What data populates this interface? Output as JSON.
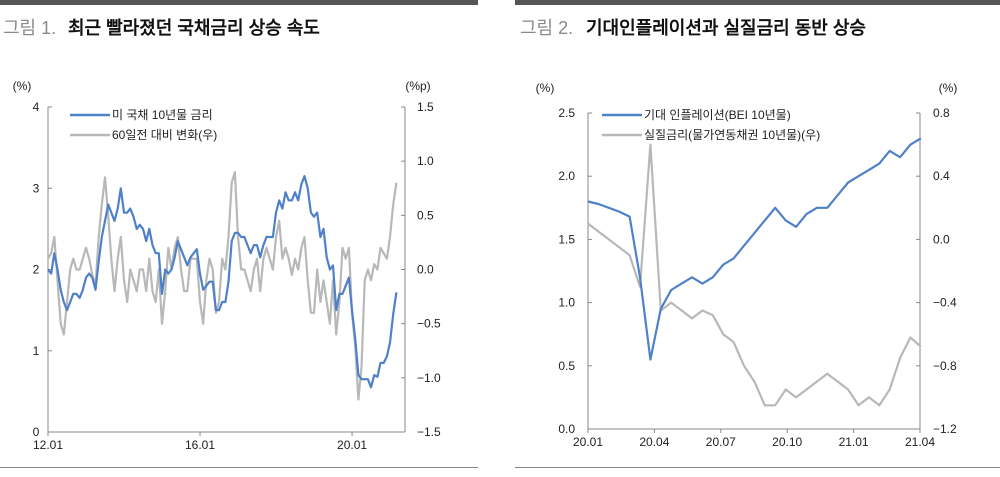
{
  "chart_data": [
    {
      "type": "line",
      "figure_label": "그림 1.",
      "title": "최근 빨라졌던 국채금리 상승 속도",
      "left_unit": "(%)",
      "right_unit": "(%p)",
      "left_ticks": [
        "4",
        "3",
        "2",
        "1",
        "0"
      ],
      "right_ticks": [
        "1.5",
        "1.0",
        "0.5",
        "0.0",
        "−0.5",
        "−1.0",
        "−1.5"
      ],
      "x_ticks": [
        "12.01",
        "16.01",
        "20.01"
      ],
      "ylim_left": [
        0,
        4
      ],
      "ylim_right": [
        -1.5,
        1.5
      ],
      "x_start": "2012-01",
      "x_step": "month",
      "legend_position": "top-left",
      "series": [
        {
          "name": "미 국채 10년물 금리",
          "axis": "left",
          "color": "#4f81c8",
          "values": [
            2.0,
            1.95,
            2.2,
            2.0,
            1.75,
            1.6,
            1.5,
            1.6,
            1.7,
            1.7,
            1.65,
            1.75,
            1.9,
            1.95,
            1.9,
            1.75,
            2.1,
            2.4,
            2.6,
            2.8,
            2.7,
            2.6,
            2.75,
            3.0,
            2.7,
            2.7,
            2.75,
            2.65,
            2.5,
            2.55,
            2.5,
            2.35,
            2.5,
            2.3,
            2.2,
            2.2,
            1.7,
            2.0,
            1.95,
            2.0,
            2.15,
            2.35,
            2.25,
            2.15,
            2.05,
            2.15,
            2.2,
            2.25,
            1.95,
            1.75,
            1.8,
            1.85,
            1.85,
            1.5,
            1.5,
            1.6,
            1.6,
            1.85,
            2.35,
            2.45,
            2.45,
            2.4,
            2.4,
            2.3,
            2.2,
            2.3,
            2.3,
            2.15,
            2.3,
            2.4,
            2.4,
            2.4,
            2.7,
            2.85,
            2.75,
            2.95,
            2.85,
            2.85,
            2.95,
            2.85,
            3.05,
            3.15,
            3.0,
            2.7,
            2.65,
            2.7,
            2.4,
            2.5,
            2.15,
            2.0,
            2.05,
            1.5,
            1.7,
            1.7,
            1.8,
            1.9,
            1.5,
            1.15,
            0.7,
            0.65,
            0.65,
            0.65,
            0.55,
            0.7,
            0.68,
            0.85,
            0.85,
            0.93,
            1.1,
            1.45,
            1.72
          ]
        },
        {
          "name": "60일전 대비 변화(우)",
          "axis": "right",
          "color": "#b8b8b8",
          "values": [
            0.1,
            0.15,
            0.3,
            -0.1,
            -0.5,
            -0.6,
            -0.3,
            0.0,
            0.1,
            0.0,
            0.0,
            0.1,
            0.2,
            0.1,
            -0.05,
            -0.15,
            0.3,
            0.6,
            0.85,
            0.5,
            0.1,
            -0.2,
            0.1,
            0.3,
            -0.1,
            -0.3,
            0.0,
            -0.1,
            -0.2,
            0.0,
            0.0,
            -0.2,
            0.1,
            -0.2,
            -0.3,
            0.0,
            -0.5,
            -0.2,
            0.2,
            0.0,
            0.2,
            0.3,
            0.0,
            -0.2,
            -0.2,
            0.1,
            0.1,
            0.1,
            -0.3,
            -0.5,
            -0.1,
            0.1,
            0.0,
            -0.4,
            -0.3,
            0.1,
            0.0,
            0.3,
            0.8,
            0.9,
            0.3,
            0.0,
            0.0,
            -0.1,
            -0.2,
            0.0,
            0.1,
            -0.2,
            0.1,
            0.2,
            0.1,
            0.0,
            0.3,
            0.45,
            0.1,
            0.2,
            0.1,
            -0.05,
            0.1,
            0.0,
            0.2,
            0.3,
            -0.1,
            -0.4,
            -0.4,
            0.0,
            -0.3,
            -0.1,
            -0.3,
            -0.5,
            -0.1,
            -0.6,
            -0.3,
            0.2,
            0.1,
            0.2,
            -0.4,
            -0.7,
            -1.2,
            -0.9,
            -0.1,
            0.0,
            -0.1,
            0.05,
            0.0,
            0.2,
            0.15,
            0.1,
            0.3,
            0.6,
            0.8
          ]
        }
      ]
    },
    {
      "type": "line",
      "figure_label": "그림 2.",
      "title": "기대인플레이션과 실질금리 동반 상승",
      "left_unit": "(%)",
      "right_unit": "(%)",
      "left_ticks": [
        "2.5",
        "2.0",
        "1.5",
        "1.0",
        "0.5",
        "0.0"
      ],
      "right_ticks": [
        "0.8",
        "0.4",
        "0.0",
        "−0.4",
        "−0.8",
        "−1.2"
      ],
      "x_ticks": [
        "20.01",
        "20.04",
        "20.07",
        "20.10",
        "21.01",
        "21.04"
      ],
      "ylim_left": [
        0,
        2.5
      ],
      "ylim_right": [
        -1.2,
        0.8
      ],
      "x_start": "2020-01",
      "x_step": "half-month",
      "legend_position": "top-left",
      "series": [
        {
          "name": "기대 인플레이션(BEI 10년물)",
          "axis": "left",
          "color": "#4f81c8",
          "values": [
            1.8,
            1.78,
            1.75,
            1.72,
            1.68,
            1.2,
            0.55,
            0.95,
            1.1,
            1.15,
            1.2,
            1.15,
            1.2,
            1.3,
            1.35,
            1.45,
            1.55,
            1.65,
            1.75,
            1.65,
            1.6,
            1.7,
            1.75,
            1.75,
            1.85,
            1.95,
            2.0,
            2.05,
            2.1,
            2.2,
            2.15,
            2.25,
            2.3
          ]
        },
        {
          "name": "실질금리(물가연동채권 10년물)(우)",
          "axis": "right",
          "color": "#b8b8b8",
          "values": [
            0.1,
            0.05,
            0.0,
            -0.05,
            -0.1,
            -0.3,
            0.6,
            -0.45,
            -0.4,
            -0.45,
            -0.5,
            -0.45,
            -0.48,
            -0.6,
            -0.65,
            -0.8,
            -0.9,
            -1.05,
            -1.05,
            -0.95,
            -1.0,
            -0.95,
            -0.9,
            -0.85,
            -0.9,
            -0.95,
            -1.05,
            -1.0,
            -1.05,
            -0.95,
            -0.75,
            -0.62,
            -0.68
          ]
        }
      ]
    }
  ]
}
